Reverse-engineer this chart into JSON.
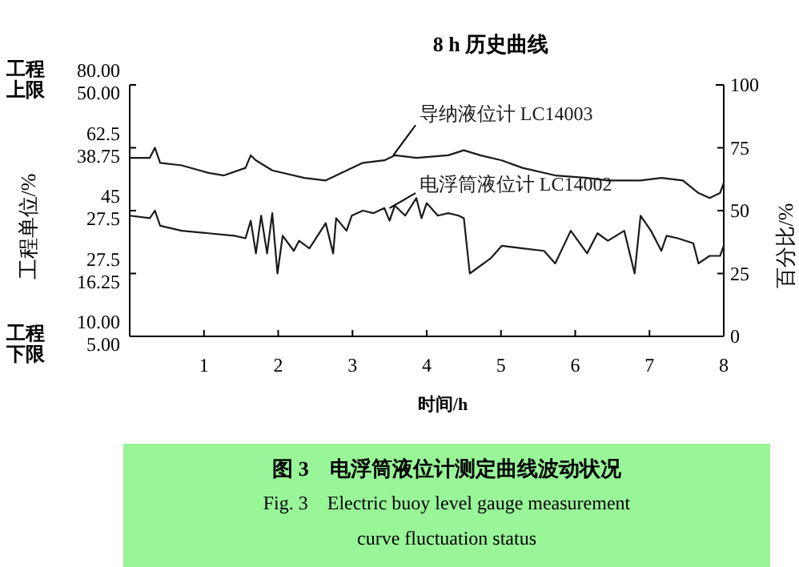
{
  "chart_data": {
    "type": "line",
    "title": "8 h 历史曲线",
    "xlabel": "时间/h",
    "ylabel": "工程单位/%",
    "y2label": "百分比/%",
    "xlim": [
      0,
      8
    ],
    "xticks": [
      1,
      2,
      3,
      4,
      5,
      6,
      7,
      8
    ],
    "ylim": [
      10,
      80
    ],
    "yticks": [
      {
        "value": 10,
        "label": "10.00"
      },
      27.5,
      45,
      62.5,
      {
        "value": 80,
        "label": "80.00"
      }
    ],
    "y3lim": [
      5,
      50
    ],
    "y3ticks": [
      {
        "value": 5,
        "label": "5.00"
      },
      16.25,
      27.5,
      38.75,
      {
        "value": 50,
        "label": "50.00"
      }
    ],
    "y2lim": [
      0,
      100
    ],
    "y2ticks": [
      0,
      25,
      50,
      75,
      100
    ],
    "grid": false,
    "line_style": "solid",
    "annotations": [
      "工程上限",
      "工程下限",
      "图 3　电浮筒液位计测定曲线波动状况",
      "Fig. 3　Electric buoy level gauge measurement curve fluctuation status"
    ],
    "series": [
      {
        "name": "导纳液位计 LC14003",
        "color": "#1a1a1a",
        "axis": "y2",
        "x": [
          0,
          0.27,
          0.34,
          0.41,
          0.7,
          1.06,
          1.27,
          1.56,
          1.63,
          1.7,
          1.92,
          2.35,
          2.64,
          2.85,
          3.14,
          3.43,
          3.57,
          3.86,
          4.29,
          4.5,
          4.72,
          5.01,
          5.29,
          5.73,
          6.16,
          6.44,
          6.88,
          7.16,
          7.45,
          7.66,
          7.81,
          7.95,
          8.0
        ],
        "values": [
          71,
          71,
          75,
          69,
          68,
          65,
          64,
          67,
          72,
          70,
          66,
          63,
          62,
          65,
          69,
          70,
          72,
          71,
          72,
          74,
          72,
          70,
          67,
          64,
          63,
          62,
          62,
          63,
          62,
          57,
          55,
          57,
          61
        ]
      },
      {
        "name": "电浮筒液位计 LC14002",
        "color": "#1a1a1a",
        "axis": "y2",
        "x": [
          0,
          0.27,
          0.34,
          0.41,
          0.7,
          1.06,
          1.41,
          1.56,
          1.63,
          1.7,
          1.77,
          1.85,
          1.92,
          1.99,
          2.06,
          2.21,
          2.28,
          2.42,
          2.64,
          2.74,
          2.78,
          2.92,
          2.99,
          3.14,
          3.28,
          3.43,
          3.5,
          3.57,
          3.71,
          3.86,
          3.93,
          4.0,
          4.15,
          4.29,
          4.43,
          4.5,
          4.58,
          4.86,
          5.01,
          5.29,
          5.58,
          5.73,
          5.94,
          6.16,
          6.3,
          6.44,
          6.66,
          6.8,
          6.88,
          7.02,
          7.16,
          7.23,
          7.38,
          7.59,
          7.66,
          7.81,
          7.95,
          8.0
        ],
        "values": [
          48,
          47,
          50,
          44,
          42,
          41,
          40,
          39,
          46,
          33,
          48,
          33,
          49,
          25,
          40,
          34,
          38,
          35,
          45,
          33,
          47,
          42,
          48,
          50,
          49,
          51,
          46,
          52,
          48,
          55,
          47,
          53,
          48,
          49,
          48,
          47,
          25,
          31,
          36,
          35,
          34,
          29,
          42,
          33,
          41,
          38,
          42,
          25,
          48,
          42,
          34,
          40,
          39,
          37,
          29,
          32,
          32,
          36
        ]
      }
    ]
  }
}
